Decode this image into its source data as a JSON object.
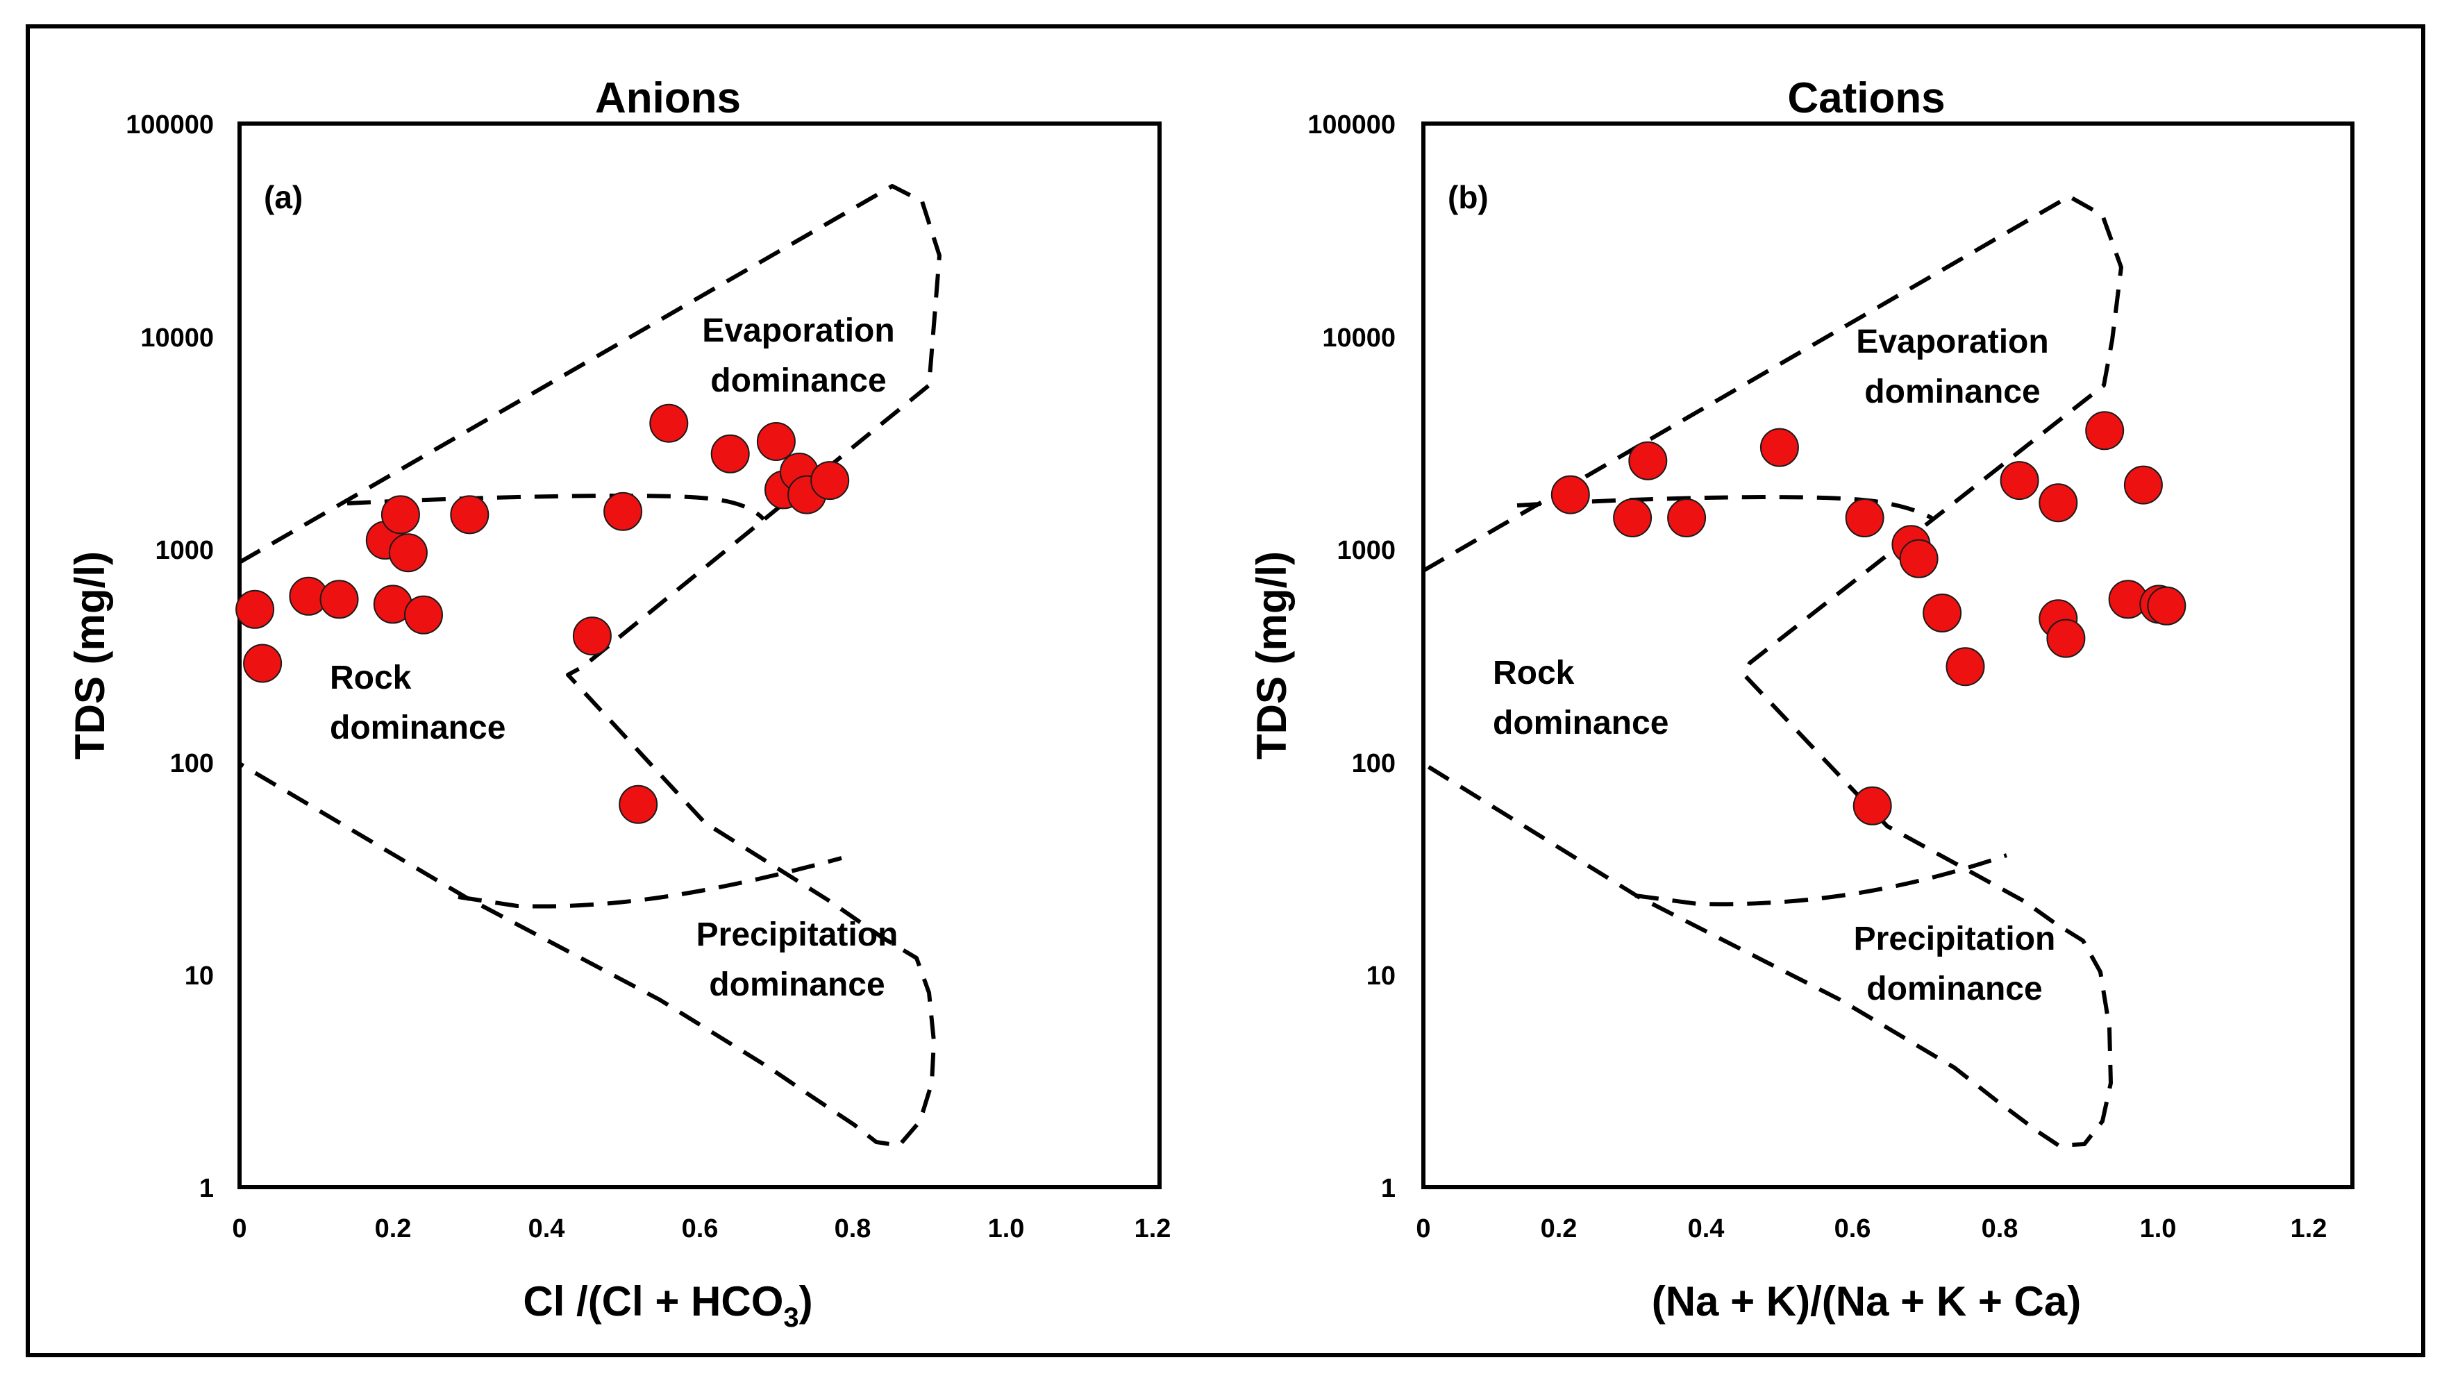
{
  "chart_data": [
    {
      "type": "scatter",
      "title": "Anions",
      "panel_label": "(a)",
      "xlabel": "Cl /(Cl + HCO",
      "xlabel_sub": "3",
      "xlabel_end": ")",
      "ylabel": "TDS (mg/l)",
      "xlim": [
        0,
        1.2
      ],
      "ylim": [
        1,
        100000
      ],
      "yscale": "log",
      "x_ticks": [
        "0",
        "0.2",
        "0.4",
        "0.6",
        "0.8",
        "1.0",
        "1.2"
      ],
      "y_ticks": [
        "1",
        "10",
        "100",
        "1000",
        "10000",
        "100000"
      ],
      "regions": [
        {
          "label_line1": "Evaporation",
          "label_line2": "dominance",
          "x": 0.72,
          "y": 6500
        },
        {
          "label_line1": "Rock",
          "label_line2": "dominance",
          "x": 0.18,
          "y": 210
        },
        {
          "label_line1": "Precipitation",
          "label_line2": "dominance",
          "x": 0.72,
          "y": 10
        }
      ],
      "points": [
        {
          "x": 0.02,
          "y": 520
        },
        {
          "x": 0.03,
          "y": 290
        },
        {
          "x": 0.09,
          "y": 600
        },
        {
          "x": 0.13,
          "y": 580
        },
        {
          "x": 0.19,
          "y": 1100
        },
        {
          "x": 0.2,
          "y": 550
        },
        {
          "x": 0.21,
          "y": 1450
        },
        {
          "x": 0.22,
          "y": 960
        },
        {
          "x": 0.24,
          "y": 490
        },
        {
          "x": 0.3,
          "y": 1450
        },
        {
          "x": 0.46,
          "y": 390
        },
        {
          "x": 0.5,
          "y": 1500
        },
        {
          "x": 0.52,
          "y": 63
        },
        {
          "x": 0.56,
          "y": 3900
        },
        {
          "x": 0.64,
          "y": 2800
        },
        {
          "x": 0.7,
          "y": 3200
        },
        {
          "x": 0.71,
          "y": 1900
        },
        {
          "x": 0.73,
          "y": 2300
        },
        {
          "x": 0.74,
          "y": 1800
        },
        {
          "x": 0.77,
          "y": 2100
        }
      ]
    },
    {
      "type": "scatter",
      "title": "Cations",
      "panel_label": "(b)",
      "xlabel": "(Na + K)/(Na + K + Ca)",
      "ylabel": "TDS (mg/l)",
      "xlim": [
        0,
        1.2
      ],
      "ylim": [
        1,
        100000
      ],
      "yscale": "log",
      "x_ticks": [
        "0",
        "0.2",
        "0.4",
        "0.6",
        "0.8",
        "1.0",
        "1.2"
      ],
      "y_ticks": [
        "1",
        "10",
        "100",
        "1000",
        "10000",
        "100000"
      ],
      "regions": [
        {
          "label_line1": "Evaporation",
          "label_line2": "dominance",
          "x": 0.72,
          "y": 6500
        },
        {
          "label_line1": "Rock",
          "label_line2": "dominance",
          "x": 0.18,
          "y": 210
        },
        {
          "label_line1": "Precipitation",
          "label_line2": "dominance",
          "x": 0.72,
          "y": 10
        }
      ],
      "points": [
        {
          "x": 0.19,
          "y": 1800
        },
        {
          "x": 0.27,
          "y": 1400
        },
        {
          "x": 0.29,
          "y": 2600
        },
        {
          "x": 0.34,
          "y": 1400
        },
        {
          "x": 0.46,
          "y": 3000
        },
        {
          "x": 0.57,
          "y": 1400
        },
        {
          "x": 0.58,
          "y": 62
        },
        {
          "x": 0.63,
          "y": 1050
        },
        {
          "x": 0.64,
          "y": 900
        },
        {
          "x": 0.67,
          "y": 500
        },
        {
          "x": 0.7,
          "y": 280
        },
        {
          "x": 0.77,
          "y": 2100
        },
        {
          "x": 0.82,
          "y": 1650
        },
        {
          "x": 0.82,
          "y": 470
        },
        {
          "x": 0.83,
          "y": 380
        },
        {
          "x": 0.88,
          "y": 3600
        },
        {
          "x": 0.91,
          "y": 580
        },
        {
          "x": 0.93,
          "y": 2000
        },
        {
          "x": 0.95,
          "y": 550
        },
        {
          "x": 0.96,
          "y": 540
        }
      ]
    }
  ]
}
